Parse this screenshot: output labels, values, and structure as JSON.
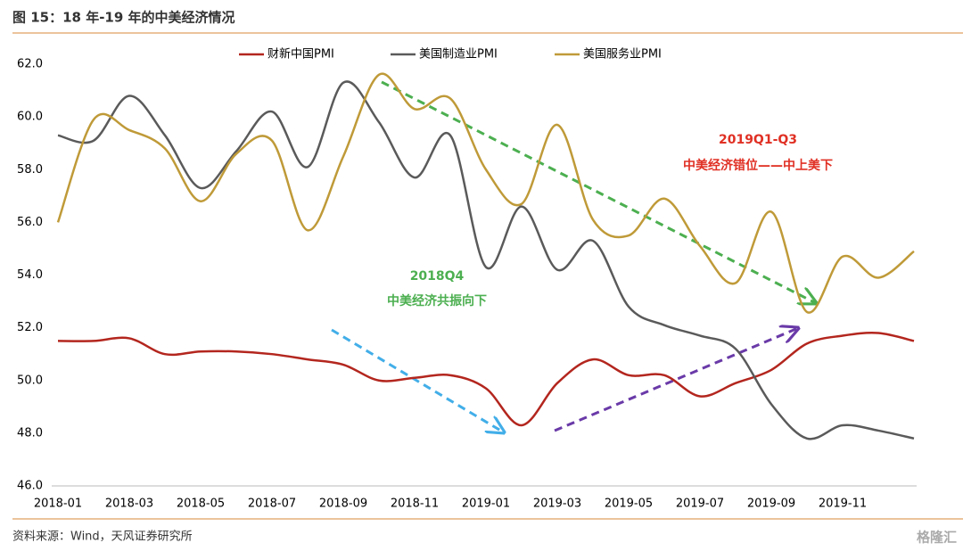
{
  "header": {
    "title": "图 15：18 年-19 年的中美经济情况"
  },
  "chart_data": {
    "type": "line",
    "categories": [
      "2018-01",
      null,
      "2018-03",
      null,
      "2018-05",
      null,
      "2018-07",
      null,
      "2018-09",
      null,
      "2018-11",
      null,
      "2019-01",
      null,
      "2019-03",
      null,
      "2019-05",
      null,
      "2019-07",
      null,
      "2019-09",
      null,
      "2019-11",
      null,
      null
    ],
    "series": [
      {
        "name": "财新中国PMI",
        "color": "#b3261e",
        "values": [
          51.5,
          51.5,
          51.6,
          51.0,
          51.1,
          51.1,
          51.0,
          50.8,
          50.6,
          50.0,
          50.1,
          50.2,
          49.7,
          48.3,
          49.9,
          50.8,
          50.2,
          50.2,
          49.4,
          49.9,
          50.4,
          51.4,
          51.7,
          51.8,
          51.5
        ]
      },
      {
        "name": "美国制造业PMI",
        "color": "#5a5a5a",
        "values": [
          59.3,
          59.1,
          60.8,
          59.3,
          57.3,
          58.7,
          60.2,
          58.1,
          61.3,
          59.8,
          57.7,
          59.3,
          54.3,
          56.6,
          54.2,
          55.3,
          52.8,
          52.1,
          51.7,
          51.2,
          49.1,
          47.8,
          48.3,
          48.1,
          47.8
        ]
      },
      {
        "name": "美国服务业PMI",
        "color": "#bf9a38",
        "values": [
          56.0,
          59.9,
          59.5,
          58.8,
          56.8,
          58.6,
          59.1,
          55.7,
          58.5,
          61.6,
          60.3,
          60.7,
          58.0,
          56.7,
          59.7,
          56.1,
          55.5,
          56.9,
          55.1,
          53.7,
          56.4,
          52.6,
          54.7,
          53.9,
          54.9
        ]
      }
    ],
    "ylim": [
      46,
      62
    ],
    "yticks": [
      {
        "value": 46,
        "label": "46.0"
      },
      {
        "value": 48,
        "label": "48.0"
      },
      {
        "value": 50,
        "label": "50.0"
      },
      {
        "value": 52,
        "label": "52.0"
      },
      {
        "value": 54,
        "label": "54.0"
      },
      {
        "value": 56,
        "label": "56.0"
      },
      {
        "value": 58,
        "label": "58.0"
      },
      {
        "value": 60,
        "label": "60.0"
      },
      {
        "value": 62,
        "label": "62.0"
      }
    ],
    "annotations": [
      {
        "text": "2018Q4",
        "color": "#4caf50"
      },
      {
        "text": "中美经济共振向下",
        "color": "#4caf50"
      },
      {
        "text": "2019Q1-Q3",
        "color": "#e03024"
      },
      {
        "text": "中美经济错位——中上美下",
        "color": "#e03024"
      }
    ]
  },
  "footer": {
    "source": "资料来源：Wind，天风证券研究所",
    "watermark": "格隆汇"
  }
}
